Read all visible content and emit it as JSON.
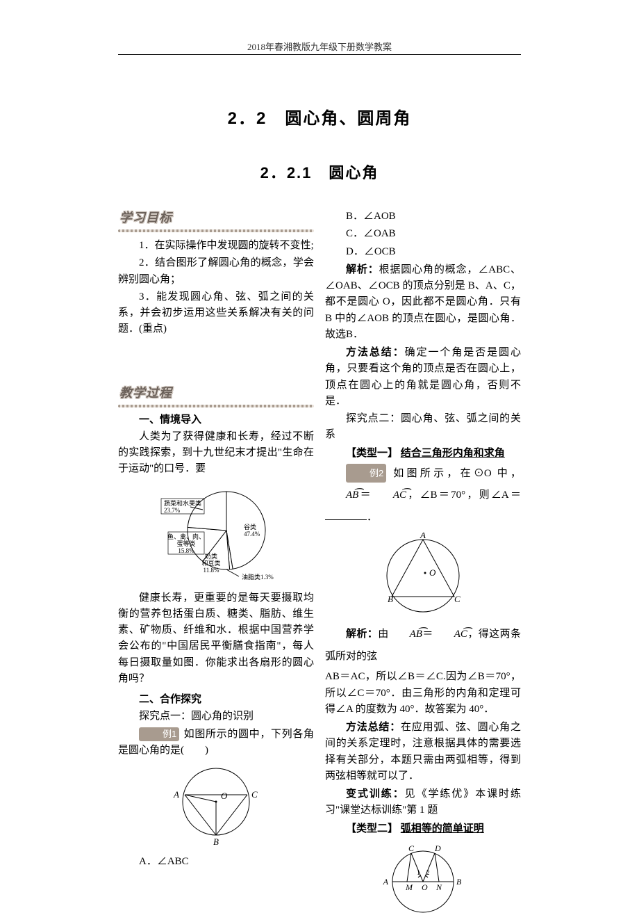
{
  "header": "2018年春湘教版九年级下册数学教案",
  "section_title": "2．2　圆心角、圆周角",
  "subsection_title": "2．2.1　圆心角",
  "badges": {
    "objectives": "学习目标",
    "process": "教学过程"
  },
  "objectives": {
    "o1": "1．在实际操作中发现圆的旋转不变性;",
    "o2": "2．结合图形了解圆心角的概念，学会辨别圆心角；",
    "o3": "3．能发现圆心角、弦、弧之间的关系，并会初步运用这些关系解决有关的问题．(重点)"
  },
  "headings": {
    "intro": "一、情境导入",
    "coop": "二、合作探究",
    "point1": "探究点一：圆心角的识别",
    "point2": "探究点二：圆心角、弦、弧之间的关系",
    "type1_label": "【类型一】",
    "type1_title": "结合三角形内角和求角",
    "type2_label": "【类型二】",
    "type2_title": "弧相等的简单证明"
  },
  "intro": {
    "p1": "人类为了获得健康和长寿，经过不断的实践探索，到十九世纪末才提出\"生命在于运动\"的口号．要",
    "p2": "健康长寿，更重要的是每天要摄取均衡的营养包括蛋白质、糖类、脂肪、维生素、矿物质、纤维和水．根据中国营养学会公布的\"中国居民平衡膳食指南\"，每人每日摄取量如图．你能求出各扇形的圆心角吗？"
  },
  "pie": {
    "slices": [
      {
        "label": "谷类",
        "label2": "47.4%",
        "pct": 47.4,
        "color": "#ffffff"
      },
      {
        "label": "油脂类1.3%",
        "label2": "",
        "pct": 1.3,
        "color": "#ffffff"
      },
      {
        "label": "奶类和豆类",
        "label2": "11.8%",
        "pct": 11.8,
        "color": "#ffffff"
      },
      {
        "label": "鱼、禽、肉、蛋等类",
        "label2": "15.8%",
        "pct": 15.8,
        "color": "#ffffff"
      },
      {
        "label": "蔬菜和水果类",
        "label2": "23.7%",
        "pct": 23.7,
        "color": "#ffffff"
      }
    ],
    "stroke": "#000000",
    "radius": 56,
    "font_size": 9
  },
  "example1": {
    "tag": "例1",
    "stem": "如图所示的圆中，下列各角是圆心角的是(　　)",
    "optA": "A．∠ABC",
    "optB": "B．∠AOB",
    "optC": "C．∠OAB",
    "optD": "D．∠OCB",
    "analysis_label": "解析：",
    "analysis": "根据圆心角的概念，∠ABC、∠OAB、∠OCB 的顶点分别是 B、A、C，都不是圆心 O，因此都不是圆心角．只有 B 中的∠AOB 的顶点在圆心，是圆心角．故选B．",
    "method_label": "方法总结：",
    "method": "确定一个角是否是圆心角，只要看这个角的顶点是否在圆心上，顶点在圆心上的角就是圆心角，否则不是．",
    "fig": {
      "labels": {
        "A": "A",
        "B": "B",
        "C": "C",
        "O": "O"
      },
      "radius": 48,
      "stroke": "#000000"
    }
  },
  "example2": {
    "tag": "例2",
    "stem_pre": "如图所示，在⊙O 中，",
    "arc1": "AB",
    "eq": "＝",
    "arc2": "AC",
    "stem_post": "，∠B＝70°，则∠A＝",
    "blank_end": "．",
    "analysis_label": "解析：",
    "analysis_pre": "由",
    "analysis_mid": "，得这两条弧所对的弦",
    "analysis_post": "AB＝AC，所以∠B＝∠C.因为∠B＝70°，所以∠C＝70°．由三角形的内角和定理可得∠A 的度数为 40°．故答案为 40°．",
    "method_label": "方法总结：",
    "method": "在应用弧、弦、圆心角之间的关系定理时，注意根据具体的需要选择有关部分，本题只需由两弧相等，得到两弦相等就可以了．",
    "variant_label": "变式训练：",
    "variant": "见《学练优》本课时练习\"课堂达标训练\"第 1 题",
    "fig": {
      "labels": {
        "A": "A",
        "B": "B",
        "C": "C",
        "O": "O"
      },
      "radius": 52,
      "stroke": "#000000"
    }
  },
  "example3_fig": {
    "labels": {
      "A": "A",
      "B": "B",
      "C": "C",
      "D": "D",
      "M": "M",
      "N": "N",
      "O": "O",
      "one": "1",
      "two": "2"
    },
    "radius": 44,
    "stroke": "#000000"
  }
}
